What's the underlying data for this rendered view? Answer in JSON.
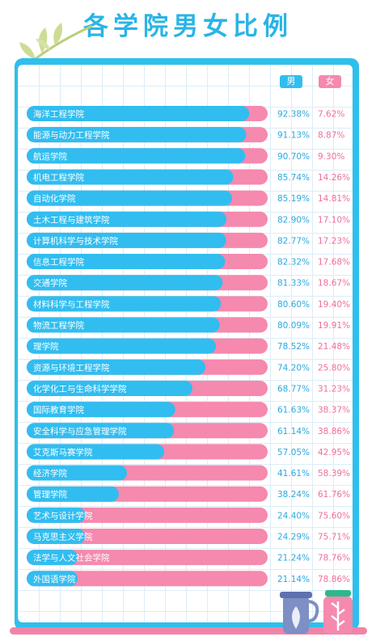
{
  "title": "各学院男女比例",
  "legend": {
    "male": "男",
    "female": "女"
  },
  "colors": {
    "male": "#31bdf0",
    "female": "#f589ae",
    "male_text": "#2aa9dc",
    "female_text": "#ee6f9b"
  },
  "chart_data": {
    "type": "bar",
    "stacked": true,
    "orientation": "horizontal",
    "title": "各学院男女比例",
    "xlim": [
      0,
      100
    ],
    "legend_position": "top-right",
    "categories": [
      "海洋工程学院",
      "能源与动力工程学院",
      "航运学院",
      "机电工程学院",
      "自动化学院",
      "土木工程与建筑学院",
      "计算机科学与技术学院",
      "信息工程学院",
      "交通学院",
      "材料科学与工程学院",
      "物流工程学院",
      "理学院",
      "资源与环境工程学院",
      "化学化工与生命科学学院",
      "国际教育学院",
      "安全科学与应急管理学院",
      "艾克斯马赛学院",
      "经济学院",
      "管理学院",
      "艺术与设计学院",
      "马克思主义学院",
      "法学与人文社会学院",
      "外国语学院"
    ],
    "series": [
      {
        "name": "男",
        "values": [
          92.38,
          91.13,
          90.7,
          85.74,
          85.19,
          82.9,
          82.77,
          82.32,
          81.33,
          80.6,
          80.09,
          78.52,
          74.2,
          68.77,
          61.63,
          61.14,
          57.05,
          41.61,
          38.24,
          24.4,
          24.29,
          21.24,
          21.14
        ],
        "labels": [
          "92.38%",
          "91.13%",
          "90.70%",
          "85.74%",
          "85.19%",
          "82.90%",
          "82.77%",
          "82.32%",
          "81.33%",
          "80.60%",
          "80.09%",
          "78.52%",
          "74.20%",
          "68.77%",
          "61.63%",
          "61.14%",
          "57.05%",
          "41.61%",
          "38.24%",
          "24.40%",
          "24.29%",
          "21.24%",
          "21.14%"
        ]
      },
      {
        "name": "女",
        "values": [
          7.62,
          8.87,
          9.3,
          14.26,
          14.81,
          17.1,
          17.23,
          17.68,
          18.67,
          19.4,
          19.91,
          21.48,
          25.8,
          31.23,
          38.37,
          38.86,
          42.95,
          58.39,
          61.76,
          75.6,
          75.71,
          78.76,
          78.86
        ],
        "labels": [
          "7.62%",
          "8.87%",
          "9.30%",
          "14.26%",
          "14.81%",
          "17.10%",
          "17.23%",
          "17.68%",
          "18.67%",
          "19.40%",
          "19.91%",
          "21.48%",
          "25.80%",
          "31.23%",
          "38.37%",
          "38.86%",
          "42.95%",
          "58.39%",
          "61.76%",
          "75.60%",
          "75.71%",
          "78.76%",
          "78.86%"
        ]
      }
    ]
  }
}
